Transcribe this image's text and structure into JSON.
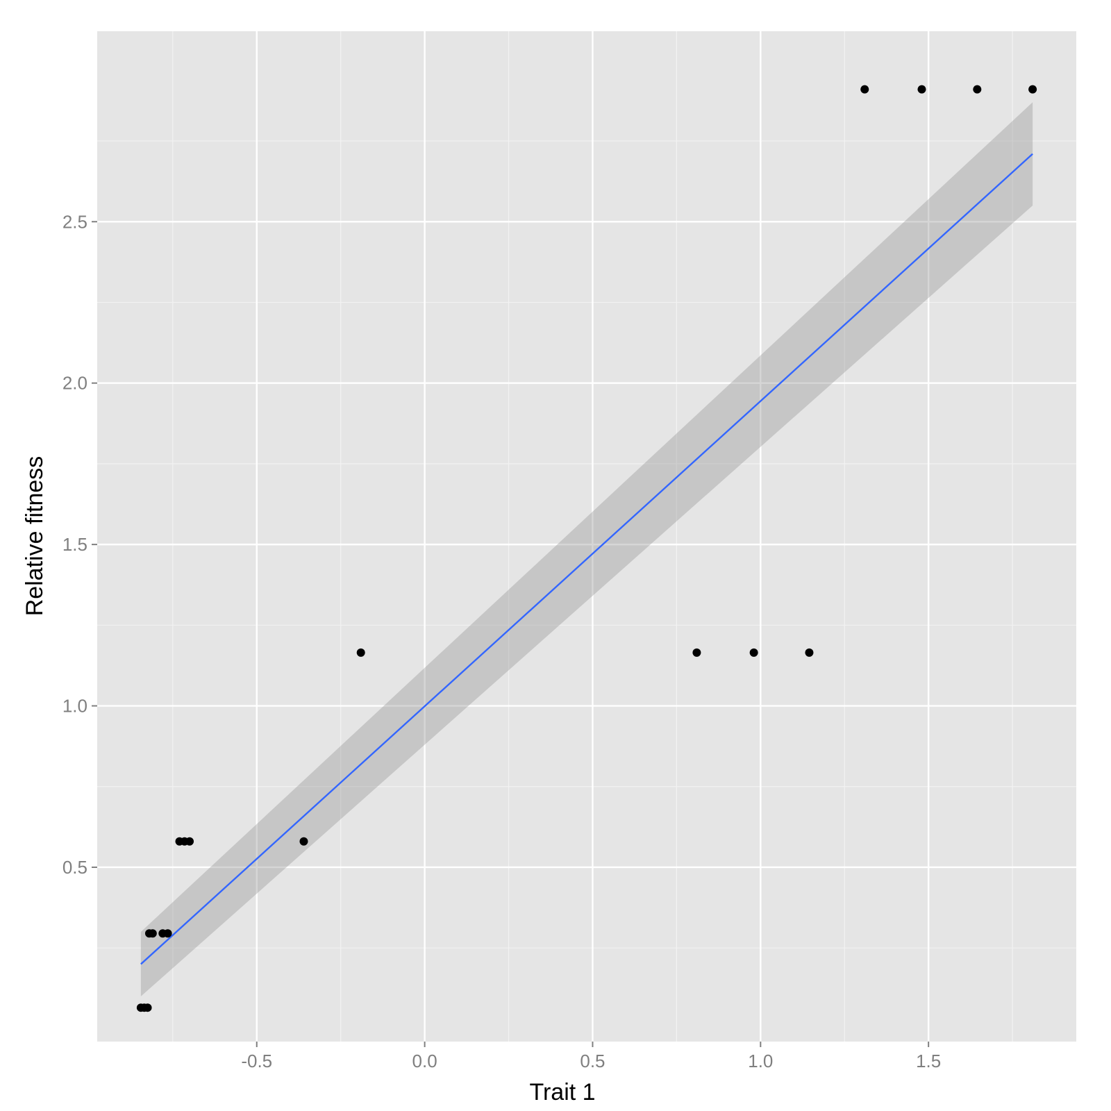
{
  "chart_data": {
    "type": "scatter",
    "title": "",
    "xlabel": "Trait 1",
    "ylabel": "Relative fitness",
    "xlim": [
      -0.975,
      1.94
    ],
    "ylim": [
      -0.04,
      3.09
    ],
    "x_ticks": [
      -0.5,
      0.0,
      0.5,
      1.0,
      1.5
    ],
    "x_tick_labels": [
      "-0.5",
      "0.0",
      "0.5",
      "1.0",
      "1.5"
    ],
    "y_ticks": [
      0.5,
      1.0,
      1.5,
      2.0,
      2.5
    ],
    "y_tick_labels": [
      "0.5",
      "1.0",
      "1.5",
      "2.0",
      "2.5"
    ],
    "grid": true,
    "legend": "none",
    "points": [
      {
        "x": -0.845,
        "y": 0.065
      },
      {
        "x": -0.835,
        "y": 0.065
      },
      {
        "x": -0.825,
        "y": 0.065
      },
      {
        "x": -0.82,
        "y": 0.295
      },
      {
        "x": -0.81,
        "y": 0.295
      },
      {
        "x": -0.78,
        "y": 0.295
      },
      {
        "x": -0.765,
        "y": 0.295
      },
      {
        "x": -0.73,
        "y": 0.58
      },
      {
        "x": -0.715,
        "y": 0.58
      },
      {
        "x": -0.7,
        "y": 0.58
      },
      {
        "x": -0.36,
        "y": 0.58
      },
      {
        "x": -0.19,
        "y": 1.165
      },
      {
        "x": 0.81,
        "y": 1.165
      },
      {
        "x": 0.98,
        "y": 1.165
      },
      {
        "x": 1.145,
        "y": 1.165
      },
      {
        "x": 1.31,
        "y": 2.91
      },
      {
        "x": 1.48,
        "y": 2.91
      },
      {
        "x": 1.645,
        "y": 2.91
      },
      {
        "x": 1.81,
        "y": 2.91
      }
    ],
    "fit": {
      "type": "linear",
      "x": [
        -0.845,
        1.81
      ],
      "y": [
        0.2,
        2.71
      ],
      "ci_lower": [
        0.1,
        2.55
      ],
      "ci_upper": [
        0.3,
        2.87
      ]
    },
    "colors": {
      "panel_background": "#e5e5e5",
      "grid_major": "#ffffff",
      "grid_minor": "#f2f2f2",
      "points": "#000000",
      "fit_line": "#3366ff",
      "ci_band": "#999999"
    }
  }
}
